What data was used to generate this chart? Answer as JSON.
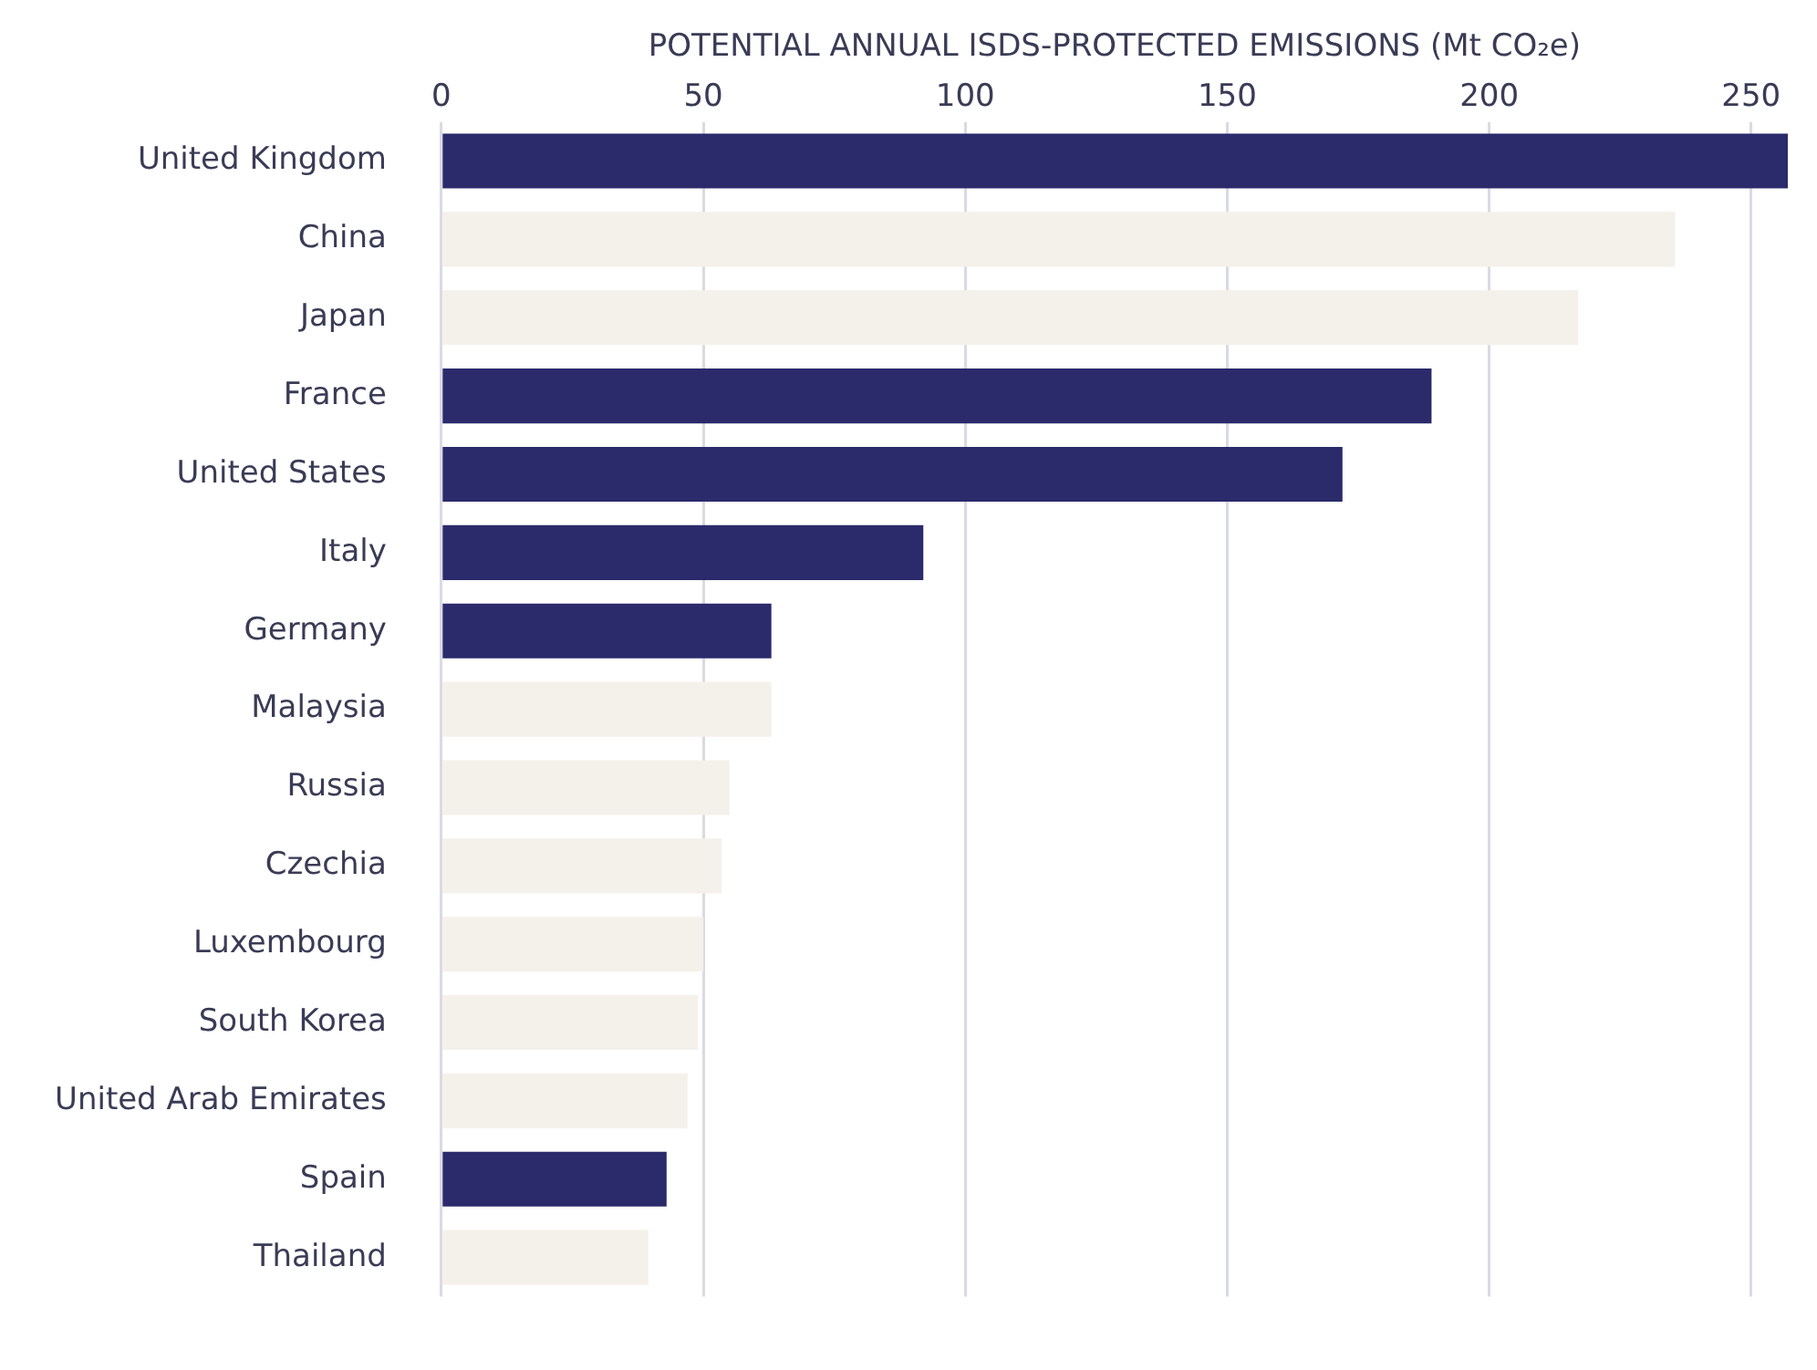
{
  "chart_data": {
    "type": "bar",
    "orientation": "horizontal",
    "xlabel": "POTENTIAL ANNUAL ISDS-PROTECTED EMISSIONS (Mt CO₂e)",
    "categories": [
      "United Kingdom",
      "China",
      "Japan",
      "France",
      "United States",
      "Italy",
      "Germany",
      "Malaysia",
      "Russia",
      "Czechia",
      "Luxembourg",
      "South Korea",
      "United Arab Emirates",
      "Spain",
      "Thailand"
    ],
    "values": [
      257,
      235.5,
      217,
      189,
      172,
      92,
      63,
      63,
      55,
      53.5,
      50,
      49,
      47,
      43,
      39.5
    ],
    "colors": [
      "#2b2a6b",
      "#f4f1ea",
      "#f4f1ea",
      "#2b2a6b",
      "#2b2a6b",
      "#2b2a6b",
      "#2b2a6b",
      "#f4f1ea",
      "#f4f1ea",
      "#f4f1ea",
      "#f4f1ea",
      "#f4f1ea",
      "#f4f1ea",
      "#2b2a6b",
      "#f4f1ea"
    ],
    "xlim": [
      0,
      257
    ],
    "xticks": [
      0,
      50,
      100,
      150,
      200,
      250
    ],
    "grid": "x",
    "legend": false
  }
}
